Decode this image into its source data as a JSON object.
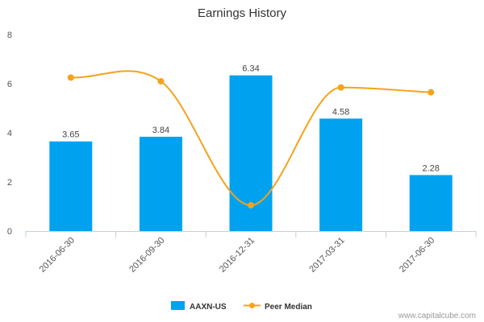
{
  "chart_data": {
    "type": "bar",
    "title": "Earnings History",
    "xlabel": "",
    "ylabel": "",
    "ylim": [
      0,
      8
    ],
    "yticks": [
      0,
      2,
      4,
      6,
      8
    ],
    "grid": false,
    "legend_position": "bottom-center",
    "categories": [
      "2016-06-30",
      "2016-09-30",
      "2016-12-31",
      "2017-03-31",
      "2017-06-30"
    ],
    "series": [
      {
        "name": "AAXN-US",
        "type": "bar",
        "color": "#00a2f0",
        "values": [
          3.65,
          3.84,
          6.34,
          4.58,
          2.28
        ],
        "labels": [
          "3.65",
          "3.84",
          "6.34",
          "4.58",
          "2.28"
        ]
      },
      {
        "name": "Peer Median",
        "type": "line",
        "color": "#f5a21b",
        "values": [
          6.25,
          6.1,
          1.05,
          5.85,
          5.65
        ]
      }
    ]
  },
  "credit": "www.capitalcube.com"
}
